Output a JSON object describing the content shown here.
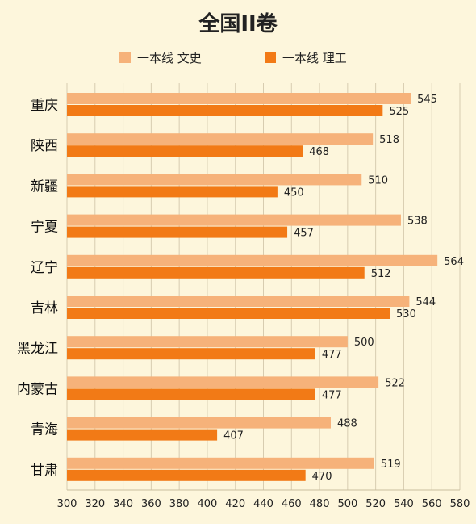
{
  "chart_data": {
    "type": "bar",
    "orientation": "horizontal",
    "title": "全国II卷",
    "categories": [
      "重庆",
      "陕西",
      "新疆",
      "宁夏",
      "辽宁",
      "吉林",
      "黑龙江",
      "内蒙古",
      "青海",
      "甘肃"
    ],
    "series": [
      {
        "name": "一本线 文史",
        "color": "#f6b27a",
        "values": [
          545,
          518,
          510,
          538,
          564,
          544,
          500,
          522,
          488,
          519
        ]
      },
      {
        "name": "一本线 理工",
        "color": "#f27a16",
        "values": [
          525,
          468,
          450,
          457,
          512,
          530,
          477,
          477,
          407,
          470
        ]
      }
    ],
    "xlim": [
      300,
      580
    ],
    "xticks": [
      300,
      320,
      340,
      360,
      380,
      400,
      420,
      440,
      460,
      480,
      500,
      520,
      540,
      560,
      580
    ],
    "grid": true,
    "legend": "top"
  }
}
